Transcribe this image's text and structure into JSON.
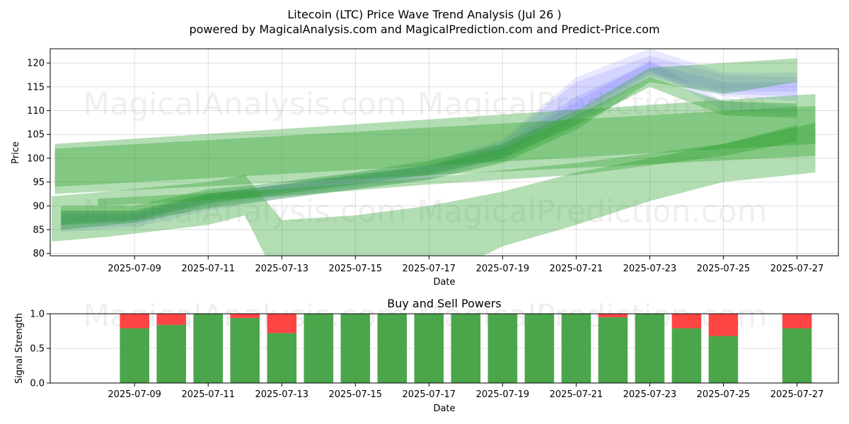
{
  "header": {
    "title": "Litecoin (LTC) Price Wave Trend Analysis (Jul 26 )",
    "subtitle": "powered by MagicalAnalysis.com and MagicalPrediction.com and Predict-Price.com"
  },
  "watermarks": [
    "MagicalAnalysis.com",
    "MagicalPrediction.com"
  ],
  "colors": {
    "blue_band": "#4a4aff",
    "green_band": "#2ca02c",
    "buy": "#4ba64b",
    "sell": "#ff4444"
  },
  "chart_data": [
    {
      "type": "area",
      "xlabel": "Date",
      "ylabel": "Price",
      "ylim": [
        79.5,
        123
      ],
      "xlim": [
        "2025-07-06T17:00",
        "2025-07-28T03:00"
      ],
      "grid": true,
      "x_ticks": [
        "2025-07-09",
        "2025-07-11",
        "2025-07-13",
        "2025-07-15",
        "2025-07-17",
        "2025-07-19",
        "2025-07-21",
        "2025-07-23",
        "2025-07-25",
        "2025-07-27"
      ],
      "y_ticks": [
        80,
        85,
        90,
        95,
        100,
        105,
        110,
        115,
        120
      ],
      "blue_bands": [
        {
          "x": [
            "2025-07-07",
            "2025-07-09",
            "2025-07-11",
            "2025-07-13",
            "2025-07-15",
            "2025-07-17",
            "2025-07-19",
            "2025-07-21",
            "2025-07-23",
            "2025-07-25",
            "2025-07-27"
          ],
          "lower": [
            84.5,
            85.5,
            89,
            91.5,
            93.5,
            95.5,
            99.5,
            107,
            117,
            113,
            112
          ],
          "upper": [
            89,
            89,
            93,
            95,
            97,
            99,
            104,
            117,
            123,
            118,
            118
          ]
        },
        {
          "x": [
            "2025-07-07",
            "2025-07-09",
            "2025-07-11",
            "2025-07-13",
            "2025-07-15",
            "2025-07-17",
            "2025-07-19",
            "2025-07-21",
            "2025-07-23",
            "2025-07-25",
            "2025-07-27"
          ],
          "lower": [
            85,
            86,
            90,
            92,
            94,
            96,
            100,
            108,
            117.5,
            113.5,
            113
          ],
          "upper": [
            88.5,
            88.5,
            92.5,
            94.5,
            96.5,
            98.5,
            103.5,
            116,
            121.5,
            117.5,
            117
          ]
        },
        {
          "x": [
            "2025-07-07",
            "2025-07-09",
            "2025-07-11",
            "2025-07-13",
            "2025-07-15",
            "2025-07-17",
            "2025-07-19",
            "2025-07-21",
            "2025-07-23",
            "2025-07-25",
            "2025-07-27"
          ],
          "lower": [
            86,
            86.5,
            90.5,
            92.5,
            94.5,
            96.5,
            100.5,
            109,
            118,
            114,
            114
          ],
          "upper": [
            88,
            88,
            92,
            94,
            96,
            98,
            103,
            113,
            120,
            116,
            116
          ]
        },
        {
          "x": [
            "2025-07-07",
            "2025-07-09",
            "2025-07-11",
            "2025-07-13",
            "2025-07-15",
            "2025-07-17",
            "2025-07-19",
            "2025-07-21",
            "2025-07-23",
            "2025-07-25",
            "2025-07-27"
          ],
          "lower": [
            86.5,
            87,
            91,
            93,
            95,
            97,
            101,
            110,
            118.5,
            110,
            109
          ],
          "upper": [
            88.5,
            88.5,
            92.5,
            94.5,
            96.5,
            98.5,
            102.5,
            112,
            120.5,
            112,
            111
          ]
        }
      ],
      "green_bands": [
        {
          "x": [
            "2025-07-06T20:00",
            "2025-07-27T12:00"
          ],
          "lower": [
            92.5,
            100.5
          ],
          "upper": [
            103,
            113.5
          ]
        },
        {
          "x": [
            "2025-07-06T20:00",
            "2025-07-27T12:00"
          ],
          "lower": [
            94,
            103
          ],
          "upper": [
            102,
            111
          ]
        },
        {
          "x": [
            "2025-07-06T18:00",
            "2025-07-08T06:00",
            "2025-07-11",
            "2025-07-12",
            "2025-07-13",
            "2025-07-15",
            "2025-07-17",
            "2025-07-19",
            "2025-07-21",
            "2025-07-23",
            "2025-07-25",
            "2025-07-27T12:00"
          ],
          "lower": [
            82.5,
            83.5,
            86,
            88,
            72.5,
            73,
            74,
            81.5,
            86,
            91,
            95,
            97
          ],
          "upper": [
            92,
            93,
            95,
            96.5,
            87,
            88,
            90,
            93,
            97,
            100,
            103,
            107.5
          ]
        },
        {
          "x": [
            "2025-07-07",
            "2025-07-09",
            "2025-07-11",
            "2025-07-13",
            "2025-07-15",
            "2025-07-17",
            "2025-07-19",
            "2025-07-21",
            "2025-07-23",
            "2025-07-25",
            "2025-07-27"
          ],
          "lower": [
            85,
            86.5,
            89.5,
            91.5,
            93.5,
            95.5,
            99,
            106,
            116,
            113.5,
            116
          ],
          "upper": [
            90,
            90,
            93.5,
            95,
            97,
            99.5,
            103,
            110,
            119,
            120,
            121
          ]
        },
        {
          "x": [
            "2025-07-07",
            "2025-07-09",
            "2025-07-11",
            "2025-07-13",
            "2025-07-15",
            "2025-07-17",
            "2025-07-19",
            "2025-07-21",
            "2025-07-23",
            "2025-07-25",
            "2025-07-27"
          ],
          "lower": [
            86,
            87,
            90.5,
            92.5,
            94.5,
            96.5,
            100,
            107,
            115,
            109,
            108.5
          ],
          "upper": [
            89,
            89,
            92.5,
            94.5,
            96.5,
            98.5,
            102,
            109,
            117,
            112,
            111.5
          ]
        },
        {
          "x": [
            "2025-07-08",
            "2025-07-13",
            "2025-07-17",
            "2025-07-21",
            "2025-07-25",
            "2025-07-27"
          ],
          "lower": [
            90,
            92,
            94.5,
            96.5,
            100.5,
            103.5
          ],
          "upper": [
            91.5,
            93.5,
            96,
            99,
            103,
            107
          ]
        }
      ]
    },
    {
      "type": "bar",
      "title": "Buy and Sell Powers",
      "xlabel": "Date",
      "ylabel": "Signal Strength",
      "ylim": [
        0,
        1
      ],
      "y_ticks": [
        "0.0",
        "0.5",
        "1.0"
      ],
      "x_ticks": [
        "2025-07-09",
        "2025-07-11",
        "2025-07-13",
        "2025-07-15",
        "2025-07-17",
        "2025-07-19",
        "2025-07-21",
        "2025-07-23",
        "2025-07-25",
        "2025-07-27"
      ],
      "categories": [
        "2025-07-09",
        "2025-07-10",
        "2025-07-11",
        "2025-07-12",
        "2025-07-13",
        "2025-07-14",
        "2025-07-15",
        "2025-07-16",
        "2025-07-17",
        "2025-07-18",
        "2025-07-19",
        "2025-07-20",
        "2025-07-21",
        "2025-07-22",
        "2025-07-23",
        "2025-07-24",
        "2025-07-25",
        "2025-07-27"
      ],
      "series": [
        {
          "name": "buy",
          "values": [
            0.79,
            0.84,
            1.0,
            0.94,
            0.72,
            1.0,
            1.0,
            1.0,
            1.0,
            1.0,
            1.0,
            1.0,
            1.0,
            0.95,
            1.0,
            0.79,
            0.68,
            0.79
          ]
        },
        {
          "name": "sell",
          "values": [
            0.21,
            0.16,
            0.0,
            0.06,
            0.28,
            0.0,
            0.0,
            0.0,
            0.0,
            0.0,
            0.0,
            0.0,
            0.0,
            0.05,
            0.0,
            0.21,
            0.32,
            0.21
          ]
        }
      ]
    }
  ]
}
